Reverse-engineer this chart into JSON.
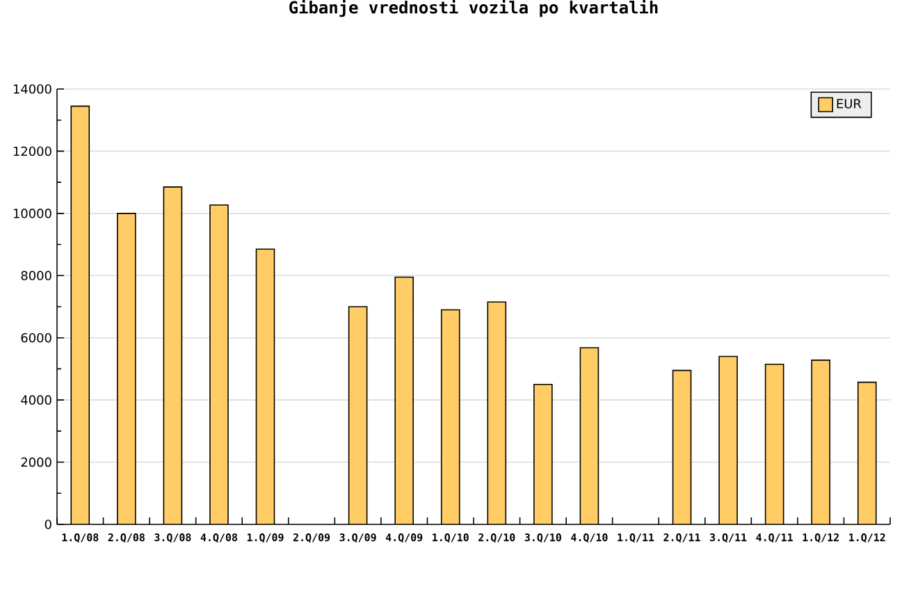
{
  "chart_data": {
    "type": "bar",
    "title": "Gibanje vrednosti vozila po kvartalih",
    "categories": [
      "1.Q/08",
      "2.Q/08",
      "3.Q/08",
      "4.Q/08",
      "1.Q/09",
      "2.Q/09",
      "3.Q/09",
      "4.Q/09",
      "1.Q/10",
      "2.Q/10",
      "3.Q/10",
      "4.Q/10",
      "1.Q/11",
      "2.Q/11",
      "3.Q/11",
      "4.Q/11",
      "1.Q/12",
      "1.Q/12"
    ],
    "series": [
      {
        "name": "EUR",
        "color": "#ffcc66",
        "values": [
          13450,
          10000,
          10850,
          10270,
          8850,
          null,
          7000,
          7950,
          6900,
          7150,
          4500,
          5680,
          null,
          4950,
          5400,
          5150,
          5280,
          4570
        ]
      }
    ],
    "ylim": [
      0,
      14000
    ],
    "yticks": [
      0,
      {
        "value": 1000,
        "label": null
      },
      2000,
      {
        "value": 3000,
        "label": null
      },
      4000,
      {
        "value": 5000,
        "label": null
      },
      6000,
      {
        "value": 7000,
        "label": null
      },
      8000,
      {
        "value": 9000,
        "label": null
      },
      10000,
      {
        "value": 11000,
        "label": null
      },
      12000,
      {
        "value": 13000,
        "label": null
      },
      14000
    ],
    "grid": "y",
    "legend": "top right"
  }
}
